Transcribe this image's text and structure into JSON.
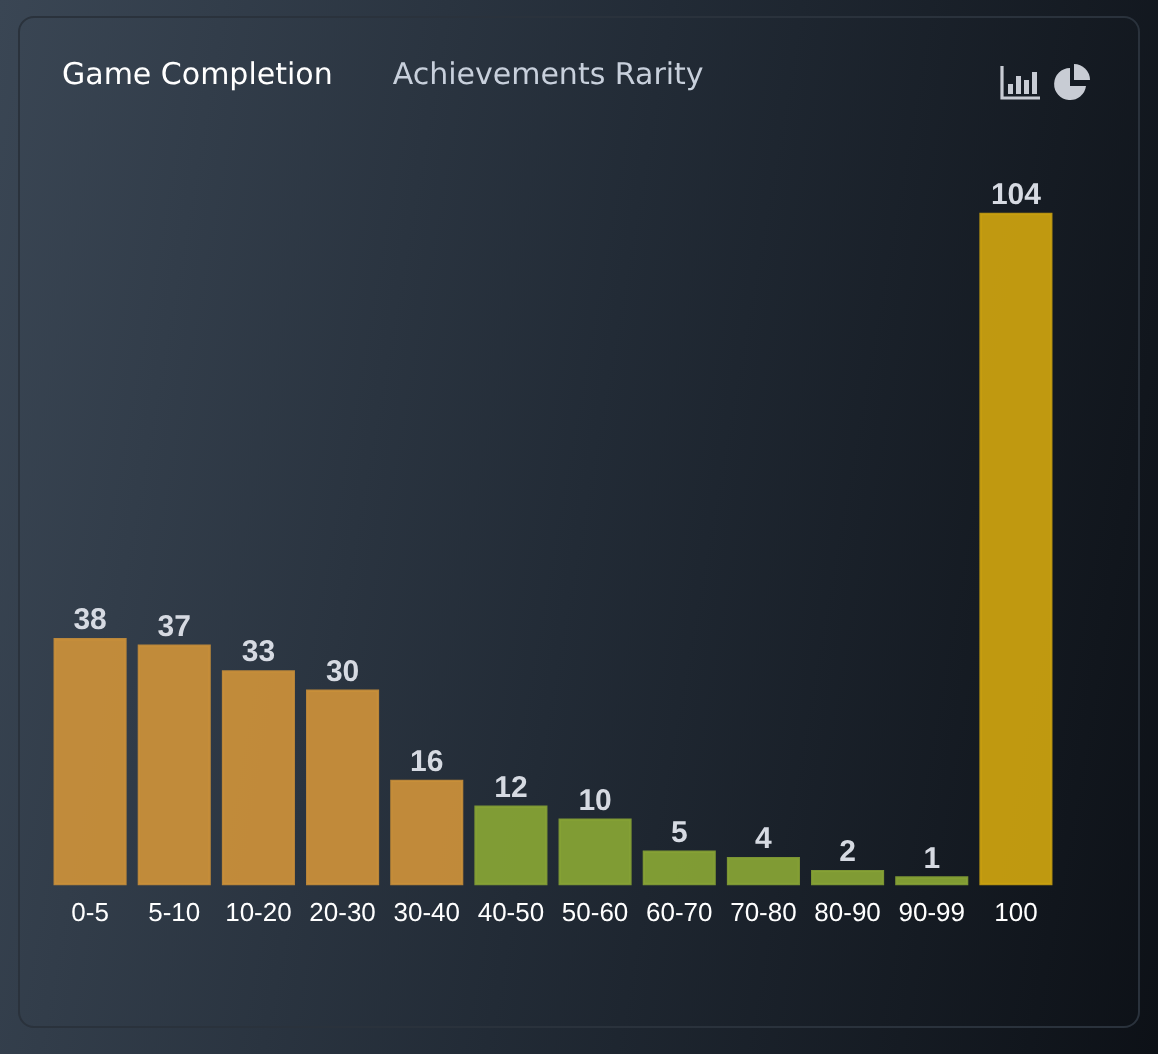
{
  "chart_data": {
    "type": "bar",
    "title": "Game Completion",
    "annotations": [
      "Achievements Rarity"
    ],
    "categories": [
      "0-5",
      "5-10",
      "10-20",
      "20-30",
      "30-40",
      "40-50",
      "50-60",
      "60-70",
      "70-80",
      "80-90",
      "90-99",
      "100"
    ],
    "values": [
      38,
      37,
      33,
      30,
      16,
      12,
      10,
      5,
      4,
      2,
      1,
      104
    ],
    "colors": [
      "#c98f3a",
      "#c98f3a",
      "#c98f3a",
      "#c98f3a",
      "#c98f3a",
      "#86a235",
      "#86a235",
      "#86a235",
      "#86a235",
      "#86a235",
      "#86a235",
      "#c9a010"
    ],
    "data_labels": true,
    "grid": false,
    "legend": false
  }
}
